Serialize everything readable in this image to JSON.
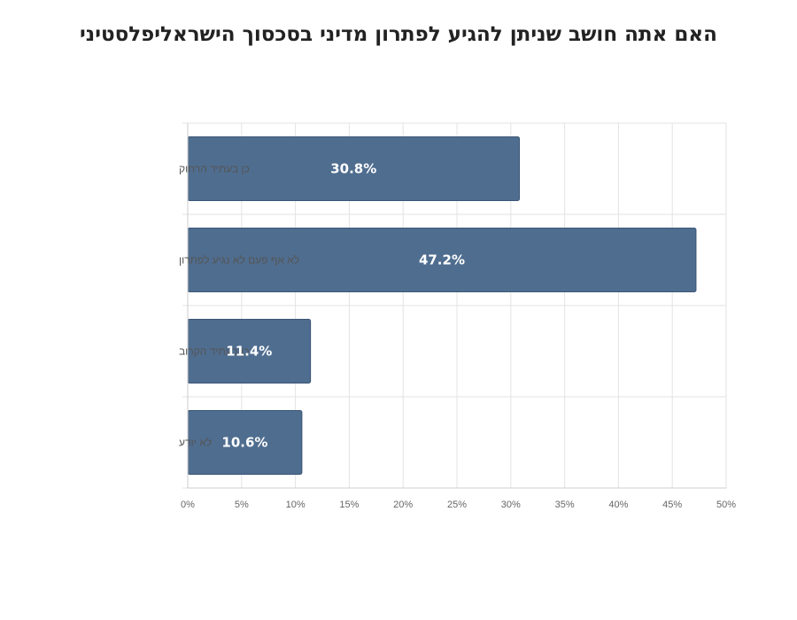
{
  "chart_data": {
    "type": "bar",
    "orientation": "horizontal",
    "title": "האם אתה חושב שניתן להגיע לפתרון מדיני בסכסוך הישראליפלסטיני",
    "categories": [
      "כן בעתיד הרחוק",
      "לא אף פעם לא נגיע לפתרון",
      "כן בעתיד הקרוב",
      "לא יודע"
    ],
    "values": [
      30.8,
      47.2,
      11.4,
      10.6
    ],
    "data_labels": [
      "30.8%",
      "47.2%",
      "11.4%",
      "10.6%"
    ],
    "xlim": [
      0,
      50
    ],
    "x_ticks": [
      0,
      5,
      10,
      15,
      20,
      25,
      30,
      35,
      40,
      45,
      50
    ],
    "x_tick_labels": [
      "0%",
      "5%",
      "10%",
      "15%",
      "20%",
      "25%",
      "30%",
      "35%",
      "40%",
      "45%",
      "50%"
    ],
    "xlabel": "",
    "ylabel": "",
    "grid": true,
    "legend": "none",
    "colors": {
      "bar": "#4f6d8f",
      "bar_edge": "#3b5676",
      "grid": "#e3e3e3",
      "axis": "#cccccc"
    }
  }
}
